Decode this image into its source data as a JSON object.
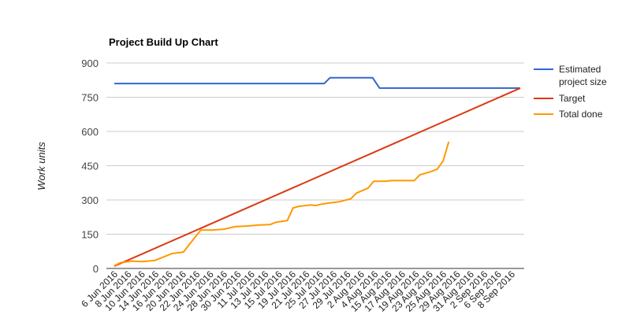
{
  "chart_data": {
    "type": "line",
    "title": "Project Build Up Chart",
    "xlabel": "",
    "ylabel": "Work units",
    "ylim": [
      0,
      900
    ],
    "yticks": [
      0,
      150,
      300,
      450,
      600,
      750,
      900
    ],
    "grid": true,
    "legend_position": "right",
    "x_tick_labels": [
      "6 Jun 2016",
      "8 Jun 2016",
      "10 Jun 2016",
      "14 Jun 2016",
      "16 Jun 2016",
      "20 Jun 2016",
      "22 Jun 2016",
      "24 Jun 2016",
      "28 Jun 2016",
      "30 Jun 2016",
      "11 Jul 2016",
      "13 Jul 2016",
      "15 Jul 2016",
      "19 Jul 2016",
      "21 Jul 2016",
      "25 Jul 2016",
      "27 Jul 2016",
      "29 Jul 2016",
      "2 Aug 2016",
      "4 Aug 2016",
      "15 Aug 2016",
      "17 Aug 2016",
      "19 Aug 2016",
      "23 Aug 2016",
      "25 Aug 2016",
      "29 Aug 2016",
      "31 Aug 2016",
      "2 Sep 2016",
      "6 Sep 2016",
      "8 Sep 2016"
    ],
    "series": [
      {
        "name": "Estimated project size",
        "legend_lines": [
          "Estimated",
          "project size"
        ],
        "color": "#3366cc",
        "points": [
          [
            0,
            810
          ],
          [
            18.2,
            810
          ],
          [
            18.7,
            835
          ],
          [
            22.4,
            835
          ],
          [
            23,
            790
          ],
          [
            35.2,
            790
          ]
        ]
      },
      {
        "name": "Target",
        "legend_lines": [
          "Target"
        ],
        "color": "#dc3912",
        "points": [
          [
            0,
            10
          ],
          [
            35.2,
            790
          ]
        ]
      },
      {
        "name": "Total done",
        "legend_lines": [
          "Total done"
        ],
        "color": "#ff9900",
        "points": [
          [
            0,
            12
          ],
          [
            0.5,
            25
          ],
          [
            1.5,
            32
          ],
          [
            2.5,
            30
          ],
          [
            3.5,
            35
          ],
          [
            4.5,
            55
          ],
          [
            5,
            65
          ],
          [
            6,
            72
          ],
          [
            6.5,
            105
          ],
          [
            7.5,
            168
          ],
          [
            8.5,
            168
          ],
          [
            9.5,
            172
          ],
          [
            10.5,
            183
          ],
          [
            11.5,
            186
          ],
          [
            12.5,
            190
          ],
          [
            13.5,
            192
          ],
          [
            14,
            202
          ],
          [
            15,
            210
          ],
          [
            15.5,
            265
          ],
          [
            16,
            272
          ],
          [
            17,
            278
          ],
          [
            17.5,
            276
          ],
          [
            18,
            282
          ],
          [
            18.5,
            286
          ],
          [
            19.5,
            292
          ],
          [
            20.5,
            305
          ],
          [
            21,
            330
          ],
          [
            22,
            352
          ],
          [
            22.5,
            382
          ],
          [
            23.5,
            382
          ],
          [
            24,
            385
          ],
          [
            25,
            385
          ],
          [
            26,
            385
          ],
          [
            26.5,
            410
          ],
          [
            27.5,
            425
          ],
          [
            28,
            435
          ],
          [
            28.5,
            470
          ],
          [
            29,
            555
          ]
        ]
      }
    ]
  }
}
